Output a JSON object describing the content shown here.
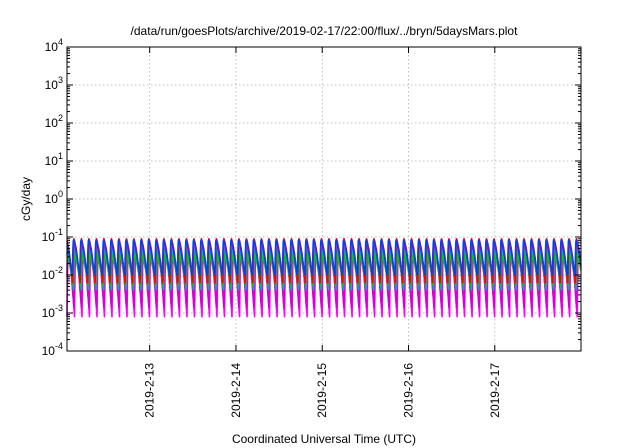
{
  "chart_data": {
    "type": "line",
    "title": "/data/run/goesPlots/archive/2019-02-17/22:00/flux/../bryn/5daysMars.plot",
    "xlabel": "Coordinated Universal Time (UTC)",
    "ylabel": "cGy/day",
    "yscale": "log",
    "ylim": [
      0.0001,
      10000
    ],
    "y_ticks": [
      {
        "base": "10",
        "exp": "4"
      },
      {
        "base": "10",
        "exp": "3"
      },
      {
        "base": "10",
        "exp": "2"
      },
      {
        "base": "10",
        "exp": "1"
      },
      {
        "base": "10",
        "exp": "0"
      },
      {
        "base": "10",
        "exp": "-1"
      },
      {
        "base": "10",
        "exp": "-2"
      },
      {
        "base": "10",
        "exp": "-3"
      },
      {
        "base": "10",
        "exp": "-4"
      }
    ],
    "xlim": [
      "2019-02-12 01:00",
      "2019-02-17 23:59"
    ],
    "x_ticks": [
      "2019-2-13",
      "2019-2-14",
      "2019-2-15",
      "2019-2-16",
      "2019-2-17"
    ],
    "x_tick_dates": [
      "2019-02-13",
      "2019-02-14",
      "2019-02-15",
      "2019-02-16",
      "2019-02-17"
    ],
    "grid": true,
    "periodic_pattern": {
      "cycles_per_day": 11.5,
      "peak": 0.085,
      "note_free": true
    },
    "series": [
      {
        "color": "#ff00ff",
        "peak": 0.055,
        "trough": 0.0008
      },
      {
        "color": "#d400d4",
        "peak": 0.06,
        "trough": 0.0012
      },
      {
        "color": "#00b0b0",
        "peak": 0.045,
        "trough": 0.004
      },
      {
        "color": "#00d000",
        "peak": 0.035,
        "trough": 0.005
      },
      {
        "color": "#ff0000",
        "peak": 0.09,
        "trough": 0.006
      },
      {
        "color": "#0040ff",
        "peak": 0.085,
        "trough": 0.009
      }
    ]
  }
}
